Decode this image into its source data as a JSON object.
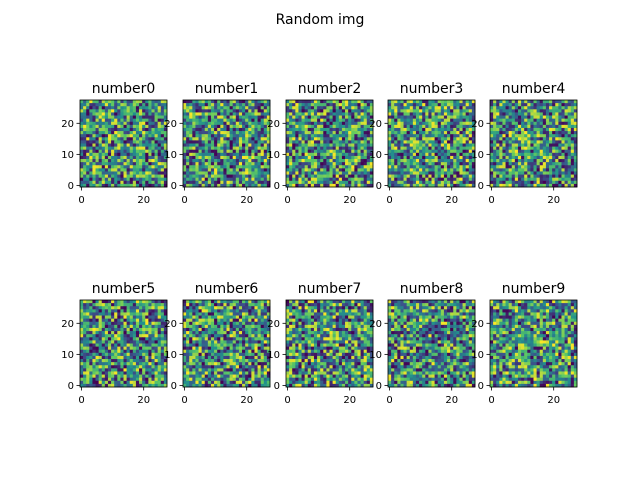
{
  "figure": {
    "suptitle": "Random img"
  },
  "chart_data": {
    "type": "heatmap",
    "subplot_grid": {
      "rows": 2,
      "cols": 5
    },
    "image_size": [
      28,
      28
    ],
    "colormap": "viridis",
    "colormap_stops": [
      "#440154",
      "#3b528b",
      "#21918c",
      "#5ec962",
      "#fde725"
    ],
    "value_note": "pixel values are random noise; individual cell values not legible",
    "axes": {
      "xticks": [
        0,
        20
      ],
      "yticks": [
        0,
        10,
        20
      ],
      "xlim": [
        -0.5,
        27.5
      ],
      "ylim": [
        27.5,
        -0.5
      ]
    },
    "subplots": [
      {
        "title": "number0"
      },
      {
        "title": "number1"
      },
      {
        "title": "number2"
      },
      {
        "title": "number3"
      },
      {
        "title": "number4"
      },
      {
        "title": "number5"
      },
      {
        "title": "number6"
      },
      {
        "title": "number7"
      },
      {
        "title": "number8"
      },
      {
        "title": "number9"
      }
    ]
  }
}
